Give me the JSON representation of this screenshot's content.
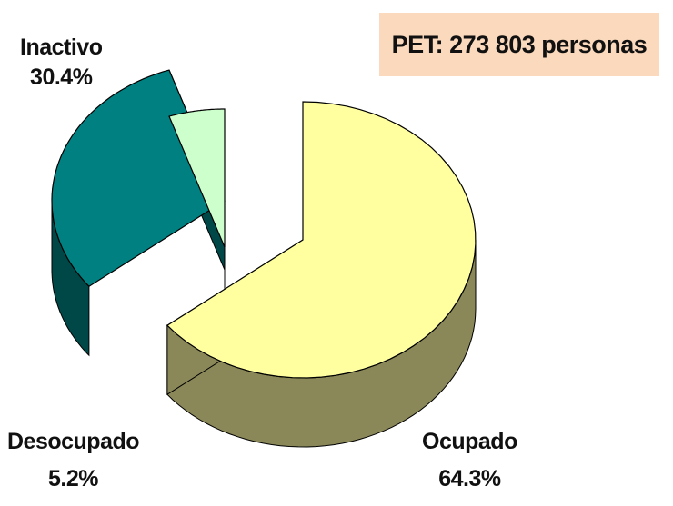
{
  "chart_data": {
    "type": "pie",
    "style": "3d-exploded",
    "title": "PET: 273 803 personas",
    "slices": [
      {
        "name": "Ocupado",
        "value": 64.3,
        "label": "64.3%",
        "top_color": "#ffff9f",
        "side_color": "#8a8858"
      },
      {
        "name": "Inactivo",
        "value": 30.4,
        "label": "30.4%",
        "top_color": "#008080",
        "side_color": "#004848"
      },
      {
        "name": "Desocupado",
        "value": 5.2,
        "label": "5.2%",
        "top_color": "#ccffcc",
        "side_color": "#6f8f70"
      }
    ]
  }
}
